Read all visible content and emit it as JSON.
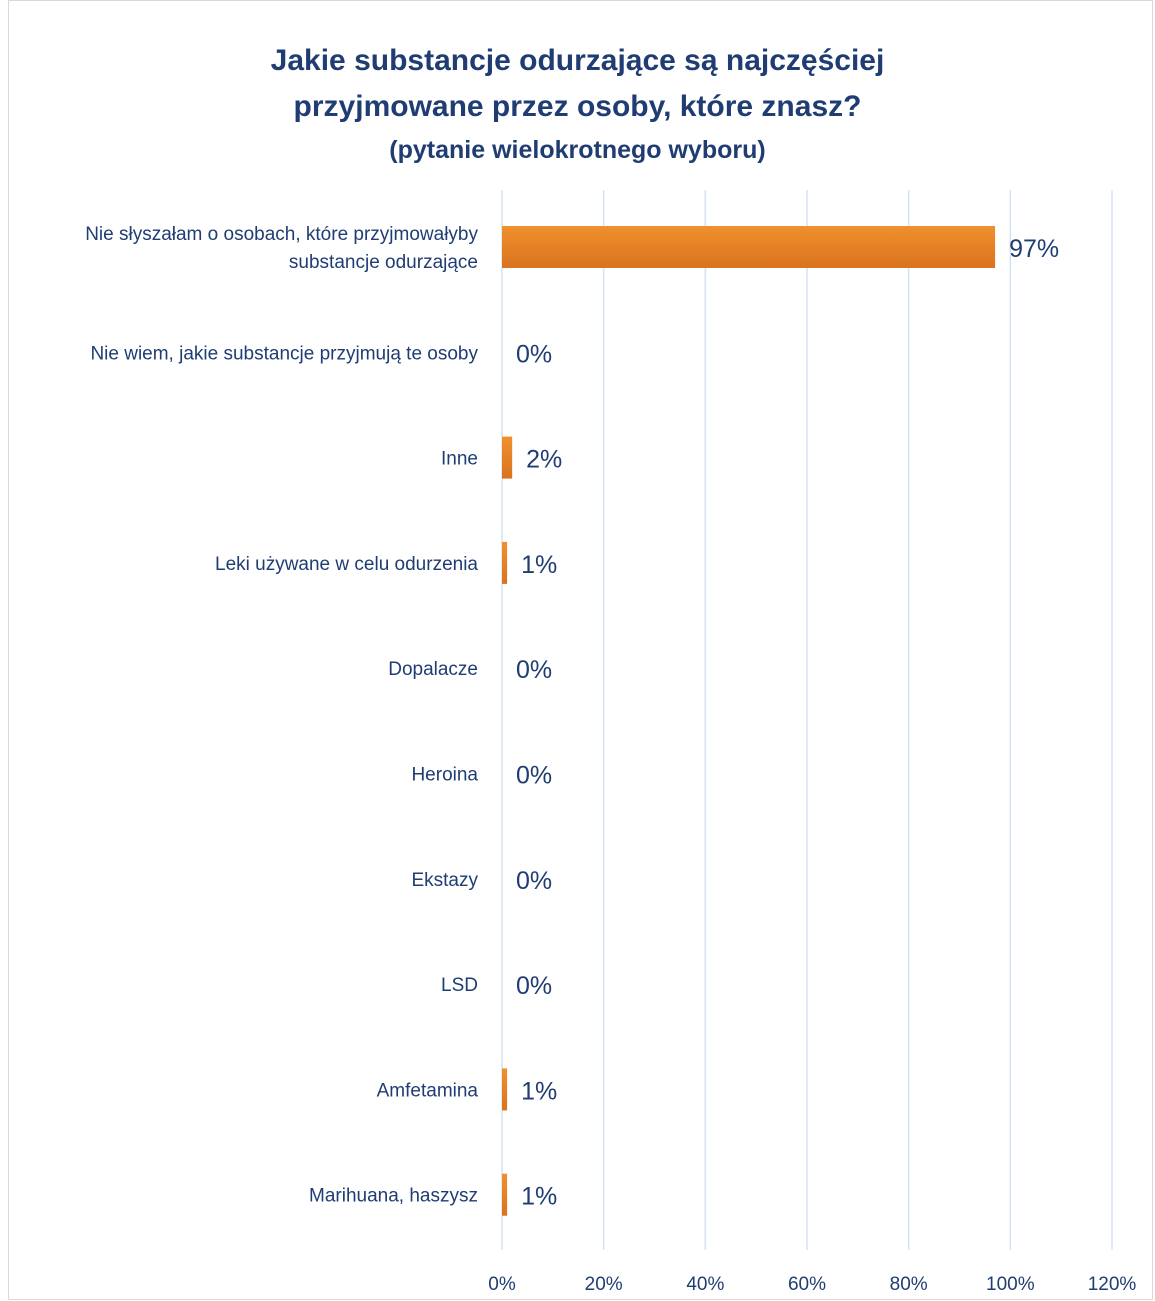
{
  "chart_data": {
    "type": "bar",
    "orientation": "horizontal",
    "title_line1": "Jakie substancje odurzające są najczęściej",
    "title_line2": "przyjmowane przez osoby, które znasz?",
    "subtitle": "(pytanie wielokrotnego wyboru)",
    "xlabel": "",
    "ylabel": "",
    "xlim": [
      0,
      120
    ],
    "x_ticks": [
      "0%",
      "20%",
      "40%",
      "60%",
      "80%",
      "100%",
      "120%"
    ],
    "grid": "vertical",
    "legend": "none",
    "bar_color": "#f0902e",
    "bar_color_dark": "#d9731f",
    "text_color": "#1f3d73",
    "gridline_color": "#d6e2f0",
    "categories": [
      [
        "Nie słyszałam o osobach, które przyjmowałyby",
        "substancje odurzające"
      ],
      [
        "Nie wiem, jakie substancje przyjmują te osoby"
      ],
      [
        "Inne"
      ],
      [
        "Leki używane w celu odurzenia"
      ],
      [
        "Dopalacze"
      ],
      [
        "Heroina"
      ],
      [
        "Ekstazy"
      ],
      [
        "LSD"
      ],
      [
        "Amfetamina"
      ],
      [
        "Marihuana, haszysz"
      ]
    ],
    "values": [
      97,
      0,
      2,
      1,
      0,
      0,
      0,
      0,
      1,
      1
    ],
    "value_labels": [
      "97%",
      "0%",
      "2%",
      "1%",
      "0%",
      "0%",
      "0%",
      "0%",
      "1%",
      "1%"
    ]
  }
}
